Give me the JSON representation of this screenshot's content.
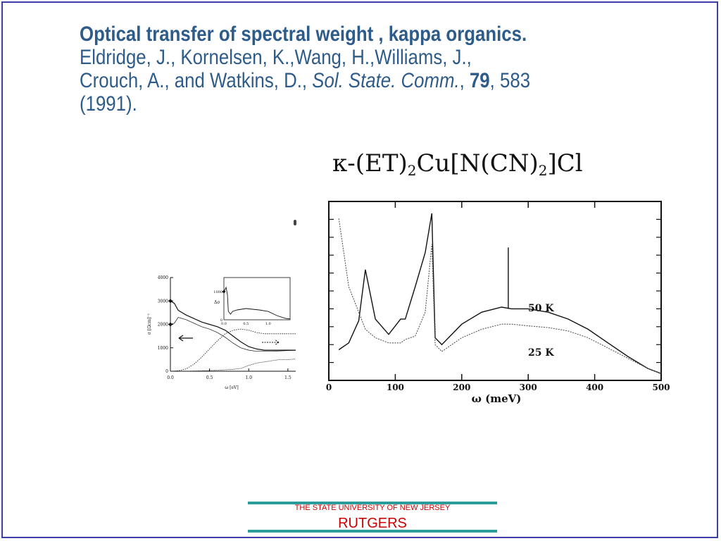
{
  "heading": {
    "title": "Optical transfer of spectral weight , kappa organics.",
    "line2": "Eldridge, J., Kornelsen, K.,Wang, H.,Williams, J.,",
    "line3_a": "Crouch, A., and Watkins, D., ",
    "journal": "Sol. State. Comm.",
    "sep1": ", ",
    "volume": "79",
    "pages": ", 583",
    "line4": "(1991)."
  },
  "formula": {
    "kappa": "κ-(ET)",
    "sub1": "2",
    "mid": "Cu[N(CN)",
    "sub2": "2",
    "end": "]Cl"
  },
  "chart_data": [
    {
      "type": "line",
      "xlabel": "ω (meV)",
      "ylabel": "",
      "xlim": [
        0,
        500
      ],
      "x_ticks": [
        "0",
        "100",
        "200",
        "300",
        "400",
        "500"
      ],
      "series": [
        {
          "name": "50 K",
          "x": [
            15,
            30,
            45,
            55,
            70,
            90,
            108,
            115,
            130,
            145,
            155,
            160,
            170,
            200,
            230,
            260,
            275,
            300,
            330,
            360,
            390,
            420,
            450,
            480,
            500
          ],
          "values": [
            0.18,
            0.22,
            0.35,
            0.65,
            0.36,
            0.27,
            0.36,
            0.36,
            0.55,
            0.75,
            0.98,
            0.25,
            0.21,
            0.33,
            0.4,
            0.43,
            0.42,
            0.42,
            0.4,
            0.36,
            0.3,
            0.22,
            0.14,
            0.07,
            0.04
          ]
        },
        {
          "name": "25 K",
          "x": [
            15,
            30,
            45,
            55,
            70,
            90,
            108,
            115,
            130,
            145,
            155,
            160,
            170,
            200,
            230,
            260,
            275,
            300,
            330,
            360,
            390,
            420,
            450,
            480,
            500
          ],
          "values": [
            0.95,
            0.55,
            0.4,
            0.3,
            0.25,
            0.22,
            0.22,
            0.24,
            0.26,
            0.4,
            0.8,
            0.21,
            0.17,
            0.25,
            0.3,
            0.33,
            0.33,
            0.32,
            0.31,
            0.29,
            0.25,
            0.19,
            0.13,
            0.07,
            0.04
          ]
        }
      ],
      "annotations": [
        "50 K",
        "25 K"
      ]
    },
    {
      "type": "line",
      "xlabel": "ω [eV]",
      "ylabel": "σ [Ωcm]⁻¹",
      "xlim": [
        0,
        1.6
      ],
      "ylim": [
        0,
        4000
      ],
      "x_ticks": [
        "0.0",
        "0.5",
        "1.0",
        "1.5"
      ],
      "y_ticks": [
        "0",
        "1000",
        "2000",
        "3000",
        "4000"
      ],
      "series": [
        {
          "x": [
            0.0,
            0.05,
            0.1,
            0.2,
            0.3,
            0.4,
            0.5,
            0.6,
            0.7,
            0.8,
            0.9,
            1.0,
            1.1,
            1.2,
            1.3,
            1.4,
            1.6
          ],
          "values": [
            3000,
            2900,
            2600,
            2400,
            2250,
            2100,
            2000,
            1900,
            1750,
            1500,
            1250,
            1050,
            950,
            900,
            900,
            900,
            900
          ]
        },
        {
          "x": [
            0.0,
            0.05,
            0.1,
            0.2,
            0.3,
            0.4,
            0.5,
            0.6,
            0.7,
            0.8,
            0.9,
            1.0,
            1.1,
            1.2,
            1.3,
            1.4,
            1.6
          ],
          "values": [
            2000,
            2050,
            2300,
            2200,
            2050,
            1900,
            1800,
            1650,
            1450,
            1200,
            1000,
            900,
            850,
            850,
            850,
            870,
            900
          ]
        },
        {
          "x": [
            0.0,
            0.1,
            0.2,
            0.3,
            0.4,
            0.5,
            0.6,
            0.7,
            0.8,
            0.9,
            1.0,
            1.1,
            1.2,
            1.3,
            1.4,
            1.6
          ],
          "values": [
            0,
            20,
            100,
            300,
            600,
            950,
            1300,
            1600,
            1750,
            1800,
            1750,
            1650,
            1600,
            1600,
            1600,
            1600
          ]
        },
        {
          "x": [
            0.0,
            0.2,
            0.4,
            0.6,
            0.8,
            0.9,
            1.0,
            1.1,
            1.2,
            1.3,
            1.4,
            1.5,
            1.6
          ],
          "values": [
            0,
            0,
            20,
            40,
            80,
            120,
            250,
            350,
            400,
            450,
            500,
            500,
            520
          ]
        }
      ],
      "markers": [
        {
          "x": 0.0,
          "y": 3000
        },
        {
          "x": 0.0,
          "y": 2000
        }
      ]
    },
    {
      "type": "line",
      "ylabel": "Δσ",
      "xlim": [
        0,
        1.5
      ],
      "ylim": [
        0,
        1500
      ],
      "x_ticks": [
        "0.0",
        "0.5",
        "1.0"
      ],
      "y_ticks": [
        "1000",
        "0"
      ],
      "series": [
        {
          "x": [
            0.0,
            0.05,
            0.08,
            0.1,
            0.15,
            0.2,
            0.3,
            0.5,
            0.8,
            1.0,
            1.2,
            1.4,
            1.5
          ],
          "values": [
            1000,
            1150,
            900,
            300,
            200,
            300,
            350,
            400,
            350,
            300,
            150,
            50,
            30
          ]
        }
      ],
      "markers": [
        {
          "x": 0.0,
          "y": 1000
        }
      ]
    }
  ],
  "footer": {
    "university": "THE STATE UNIVERSITY OF NEW JERSEY",
    "name": "RUTGERS"
  },
  "colors": {
    "heading": "#2e5c8a",
    "border": "#3d3da6",
    "footer_rule": "#2a9c99",
    "footer_text": "#cc0000"
  }
}
